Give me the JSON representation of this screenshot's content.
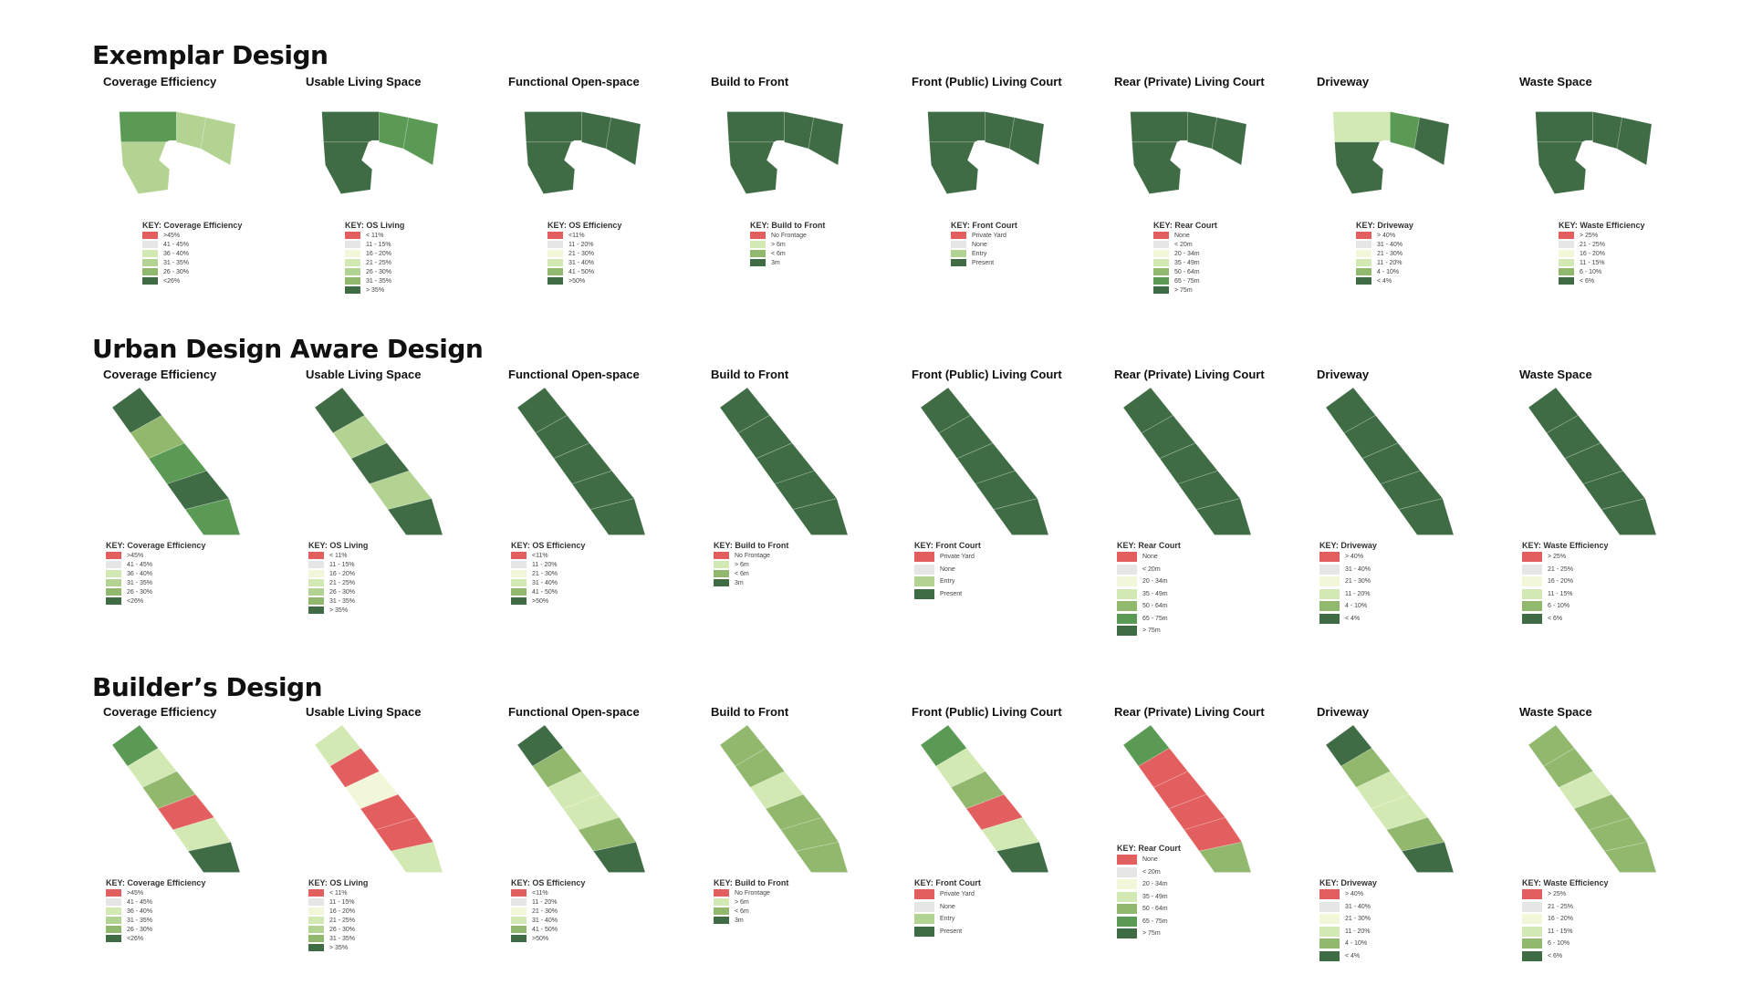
{
  "colors": {
    "red": "#e35f5f",
    "grey": "#e6e6e6",
    "pale": "#f2f7da",
    "light": "#d3e9b3",
    "lgreen": "#b3d392",
    "mgreen": "#92b86e",
    "green": "#5a9a54",
    "dgreen": "#3f6b45"
  },
  "categories": [
    "Coverage Efficiency",
    "Usable Living Space",
    "Functional Open-space",
    "Build to Front",
    "Front (Public) Living Court",
    "Rear (Private) Living Court",
    "Driveway",
    "Waste Space"
  ],
  "keys": {
    "coverage": {
      "title": "KEY: Coverage Efficiency",
      "items": [
        ">45%",
        "41 - 45%",
        "36 - 40%",
        "31 - 35%",
        "26 - 30%",
        "<26%"
      ],
      "colors": [
        "red",
        "grey",
        "light",
        "lgreen",
        "mgreen",
        "dgreen"
      ]
    },
    "os_living": {
      "title": "KEY: OS Living",
      "items": [
        "< 11%",
        "11 - 15%",
        "16 - 20%",
        "21 - 25%",
        "26 - 30%",
        "31 - 35%",
        "> 35%"
      ],
      "colors": [
        "red",
        "grey",
        "pale",
        "light",
        "lgreen",
        "mgreen",
        "dgreen"
      ]
    },
    "os_efficiency": {
      "title": "KEY: OS Efficiency",
      "items": [
        "<11%",
        "11 - 20%",
        "21 - 30%",
        "31 - 40%",
        "41 - 50%",
        ">50%"
      ],
      "colors": [
        "red",
        "grey",
        "pale",
        "light",
        "mgreen",
        "dgreen"
      ]
    },
    "build_front": {
      "title": "KEY: Build to Front",
      "items": [
        "No Frontage",
        "> 6m",
        "< 6m",
        "3m"
      ],
      "colors": [
        "red",
        "light",
        "mgreen",
        "dgreen"
      ]
    },
    "front_court": {
      "title": "KEY: Front Court",
      "items": [
        "Private Yard",
        "None",
        "Entry",
        "Present"
      ],
      "colors": [
        "red",
        "grey",
        "lgreen",
        "dgreen"
      ]
    },
    "rear_court": {
      "title": "KEY: Rear Court",
      "items": [
        "None",
        "< 20m",
        "20 - 34m",
        "35 - 49m",
        "50 - 64m",
        "65 - 75m",
        "> 75m"
      ],
      "colors": [
        "red",
        "grey",
        "pale",
        "light",
        "mgreen",
        "green",
        "dgreen"
      ]
    },
    "driveway": {
      "title": "KEY: Driveway",
      "items": [
        "> 40%",
        "31 - 40%",
        "21 - 30%",
        "11 - 20%",
        "4 - 10%",
        "< 4%"
      ],
      "colors": [
        "red",
        "grey",
        "pale",
        "light",
        "mgreen",
        "dgreen"
      ]
    },
    "waste": {
      "title": "KEY: Waste Efficiency",
      "items": [
        "> 25%",
        "21 - 25%",
        "16 - 20%",
        "11 - 15%",
        "6 - 10%",
        "< 6%"
      ],
      "colors": [
        "red",
        "grey",
        "pale",
        "light",
        "mgreen",
        "dgreen"
      ]
    }
  },
  "sections": [
    {
      "title": "Exemplar Design",
      "shape": "u",
      "panels": [
        {
          "title": "Coverage Efficiency",
          "key": "coverage",
          "fills": [
            "green",
            "lgreen",
            "lgreen",
            "lgreen"
          ]
        },
        {
          "title": "Usable Living Space",
          "key": "os_living",
          "fills": [
            "dgreen",
            "green",
            "green",
            "dgreen"
          ]
        },
        {
          "title": "Functional Open-space",
          "key": "os_efficiency",
          "fills": [
            "dgreen",
            "dgreen",
            "dgreen",
            "dgreen"
          ]
        },
        {
          "title": "Build to Front",
          "key": "build_front",
          "fills": [
            "dgreen",
            "dgreen",
            "dgreen",
            "dgreen"
          ]
        },
        {
          "title": "Front (Public) Living Court",
          "key": "front_court",
          "fills": [
            "dgreen",
            "dgreen",
            "dgreen",
            "dgreen"
          ]
        },
        {
          "title": "Rear (Private) Living Court",
          "key": "rear_court",
          "fills": [
            "dgreen",
            "dgreen",
            "dgreen",
            "dgreen"
          ]
        },
        {
          "title": "Driveway",
          "key": "driveway",
          "fills": [
            "light",
            "green",
            "dgreen",
            "dgreen"
          ]
        },
        {
          "title": "Waste Space",
          "key": "waste",
          "fills": [
            "dgreen",
            "dgreen",
            "dgreen",
            "dgreen"
          ]
        }
      ]
    },
    {
      "title": "Urban Design Aware Design",
      "shape": "diag",
      "panels": [
        {
          "title": "Coverage Efficiency",
          "key": "coverage",
          "fills": [
            "dgreen",
            "mgreen",
            "green",
            "dgreen",
            "green"
          ]
        },
        {
          "title": "Usable Living Space",
          "key": "os_living",
          "fills": [
            "dgreen",
            "lgreen",
            "dgreen",
            "lgreen",
            "dgreen"
          ]
        },
        {
          "title": "Functional Open-space",
          "key": "os_efficiency",
          "fills": [
            "dgreen",
            "dgreen",
            "dgreen",
            "dgreen",
            "dgreen"
          ]
        },
        {
          "title": "Build to Front",
          "key": "build_front",
          "fills": [
            "dgreen",
            "dgreen",
            "dgreen",
            "dgreen",
            "dgreen"
          ]
        },
        {
          "title": "Front (Public) Living Court",
          "key": "front_court",
          "fills": [
            "dgreen",
            "dgreen",
            "dgreen",
            "dgreen",
            "dgreen"
          ]
        },
        {
          "title": "Rear (Private) Living Court",
          "key": "rear_court",
          "fills": [
            "dgreen",
            "dgreen",
            "dgreen",
            "dgreen",
            "dgreen"
          ]
        },
        {
          "title": "Driveway",
          "key": "driveway",
          "fills": [
            "dgreen",
            "dgreen",
            "dgreen",
            "dgreen",
            "dgreen"
          ]
        },
        {
          "title": "Waste Space",
          "key": "waste",
          "fills": [
            "dgreen",
            "dgreen",
            "dgreen",
            "dgreen",
            "dgreen"
          ]
        }
      ]
    },
    {
      "title": "Builder’s Design",
      "shape": "diag",
      "panels": [
        {
          "title": "Coverage Efficiency",
          "key": "coverage",
          "fills": [
            "green",
            "light",
            "mgreen",
            "red",
            "light",
            "dgreen"
          ]
        },
        {
          "title": "Usable Living Space",
          "key": "os_living",
          "fills": [
            "light",
            "red",
            "pale",
            "red",
            "red",
            "light"
          ]
        },
        {
          "title": "Functional Open-space",
          "key": "os_efficiency",
          "fills": [
            "dgreen",
            "mgreen",
            "light",
            "light",
            "mgreen",
            "dgreen"
          ]
        },
        {
          "title": "Build to Front",
          "key": "build_front",
          "fills": [
            "mgreen",
            "mgreen",
            "light",
            "mgreen",
            "mgreen",
            "mgreen"
          ]
        },
        {
          "title": "Front (Public) Living Court",
          "key": "front_court",
          "fills": [
            "green",
            "light",
            "mgreen",
            "red",
            "light",
            "dgreen"
          ]
        },
        {
          "title": "Rear (Private) Living Court",
          "key": "rear_court",
          "fills": [
            "green",
            "red",
            "red",
            "red",
            "red",
            "mgreen"
          ]
        },
        {
          "title": "Driveway",
          "key": "driveway",
          "fills": [
            "dgreen",
            "mgreen",
            "light",
            "light",
            "mgreen",
            "dgreen"
          ]
        },
        {
          "title": "Waste Space",
          "key": "waste",
          "fills": [
            "mgreen",
            "mgreen",
            "light",
            "mgreen",
            "mgreen",
            "mgreen"
          ]
        }
      ]
    }
  ]
}
